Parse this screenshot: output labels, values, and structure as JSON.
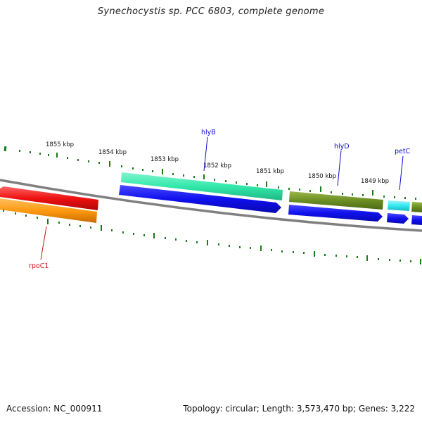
{
  "title": "Synechocystis sp. PCC 6803, complete genome",
  "footer": {
    "accession": "Accession: NC_000911",
    "summary": "Topology: circular; Length: 3,573,470 bp; Genes: 3,222"
  },
  "scale_labels": [
    "1855 kbp",
    "1854 kbp",
    "1853 kbp",
    "1852 kbp",
    "1851 kbp",
    "1850 kbp",
    "1849 kbp"
  ],
  "genes": [
    {
      "name": "hlyB",
      "color": "#0a0acc",
      "fill": "#33e8aa",
      "strand": "+"
    },
    {
      "name": "hlyD",
      "color": "#0a0acc",
      "fill": "#6b8e23",
      "strand": "+"
    },
    {
      "name": "petC",
      "color": "#0a0acc",
      "fill": "#33e8f0",
      "strand": "+"
    },
    {
      "name": "rpoC1",
      "color": "#cc1111",
      "fill": "#ee1111",
      "strand": "-"
    }
  ],
  "colors": {
    "tick": "#1a7a1a",
    "backbone": "#888888",
    "cds": "#1010ee",
    "rrna": "#ff8c00",
    "gene_red": "#ee1111"
  }
}
